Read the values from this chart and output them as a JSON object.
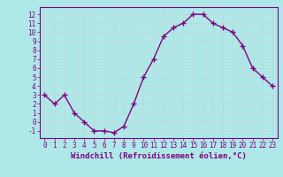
{
  "x": [
    0,
    1,
    2,
    3,
    4,
    5,
    6,
    7,
    8,
    9,
    10,
    11,
    12,
    13,
    14,
    15,
    16,
    17,
    18,
    19,
    20,
    21,
    22,
    23
  ],
  "y": [
    3,
    2,
    3,
    1,
    0,
    -1,
    -1,
    -1.2,
    -0.5,
    2,
    5,
    7,
    9.5,
    10.5,
    11,
    12,
    12,
    11,
    10.5,
    10,
    8.5,
    6,
    5,
    4
  ],
  "line_color": "#800080",
  "marker": "+",
  "markersize": 4,
  "linewidth": 1.0,
  "bg_color": "#aee8e8",
  "grid_color": "#c0d8d8",
  "xlabel": "Windchill (Refroidissement éolien,°C)",
  "xlabel_fontsize": 6.5,
  "xlabel_color": "#800080",
  "tick_color": "#800080",
  "ylim": [
    -1.8,
    12.8
  ],
  "xlim": [
    -0.5,
    23.5
  ],
  "yticks": [
    -1,
    0,
    1,
    2,
    3,
    4,
    5,
    6,
    7,
    8,
    9,
    10,
    11,
    12
  ],
  "xticks": [
    0,
    1,
    2,
    3,
    4,
    5,
    6,
    7,
    8,
    9,
    10,
    11,
    12,
    13,
    14,
    15,
    16,
    17,
    18,
    19,
    20,
    21,
    22,
    23
  ],
  "tick_fontsize": 5.5,
  "spine_color": "#800080"
}
